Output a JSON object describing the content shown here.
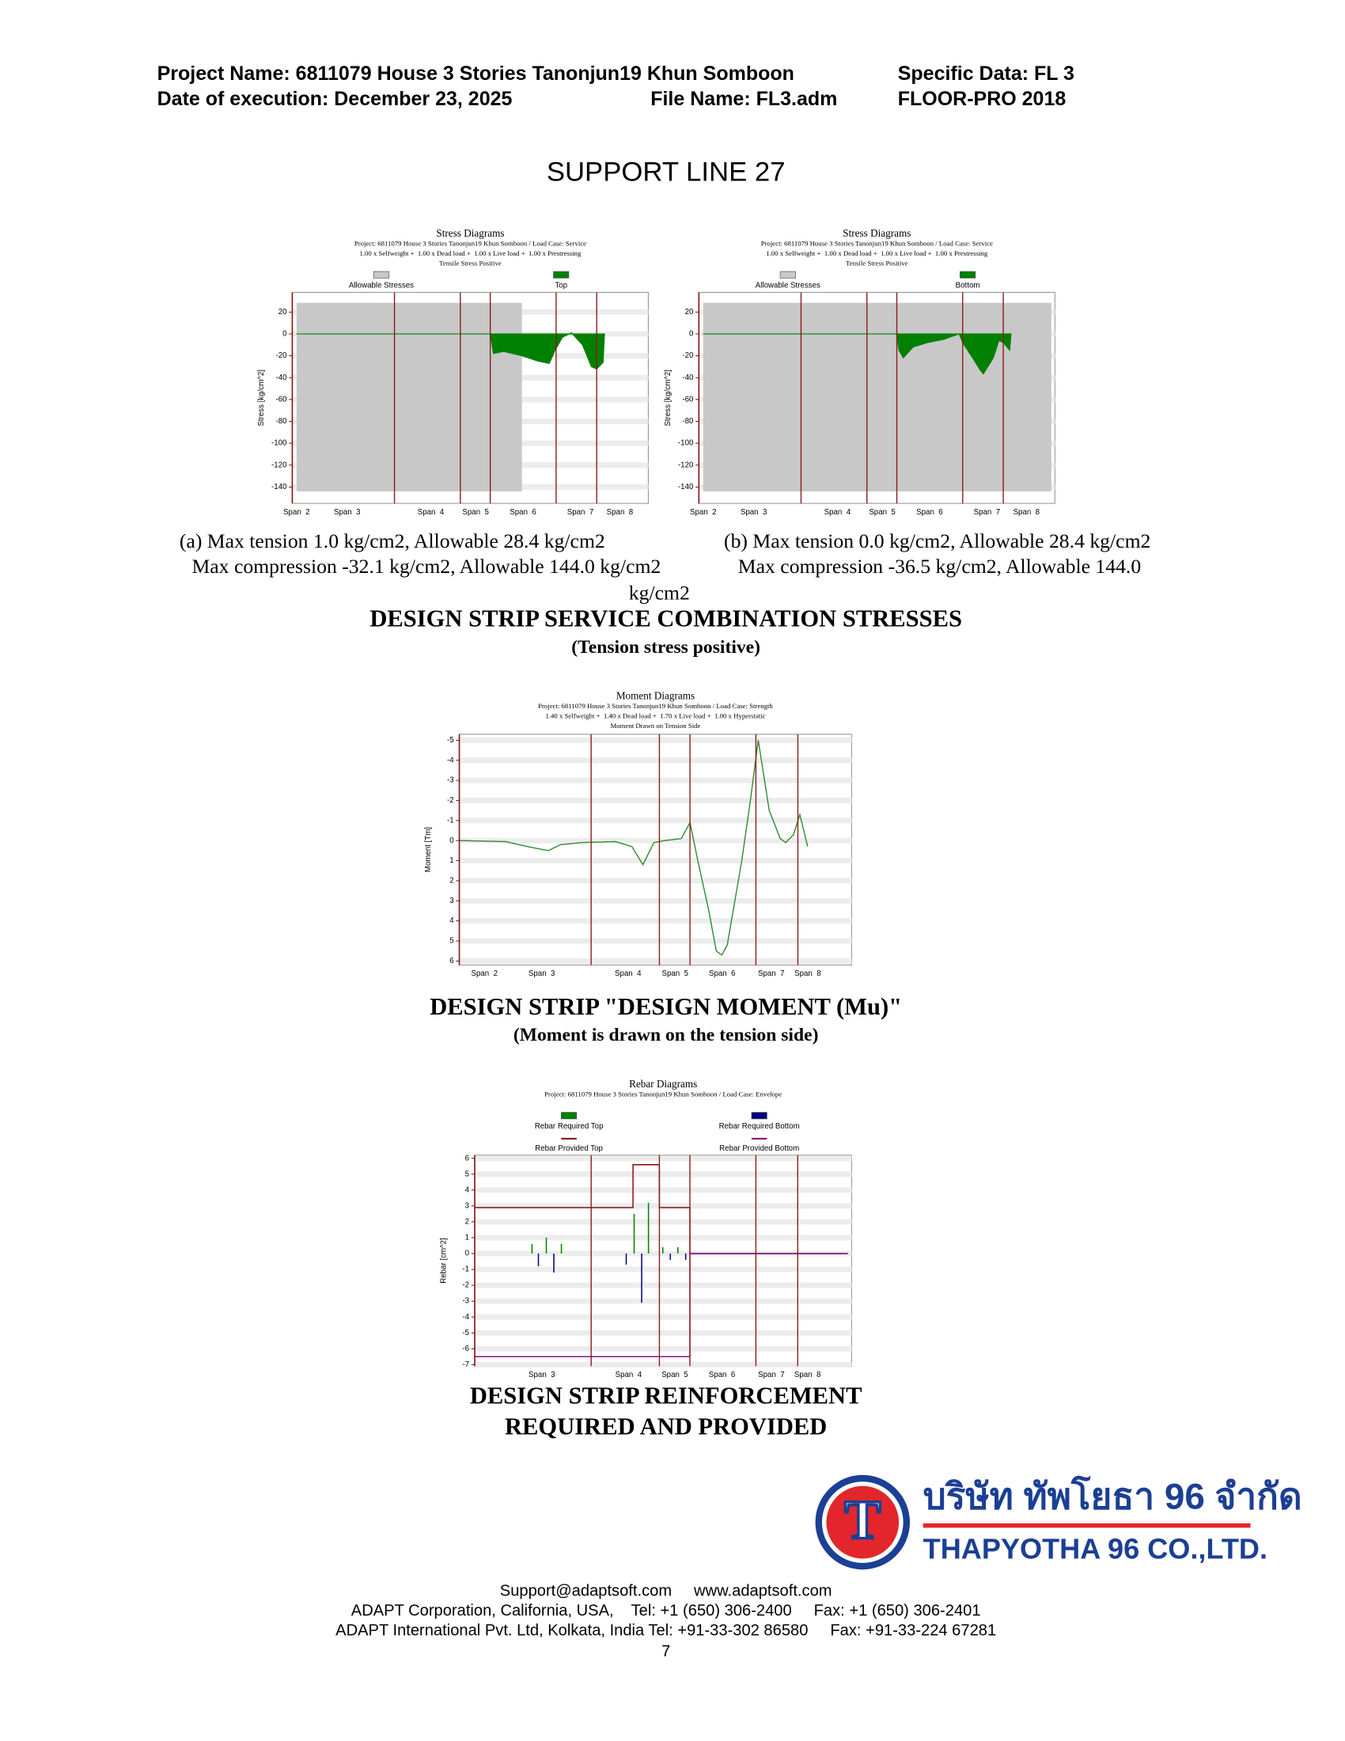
{
  "header": {
    "project_name": "Project Name: 6811079 House 3 Stories Tanonjun19 Khun Somboon",
    "specific_data": "Specific Data: FL 3",
    "date": "Date of execution: December 23, 2025",
    "file_name": "File Name: FL3.adm",
    "software": "FLOOR-PRO 2018"
  },
  "section_title": "SUPPORT LINE 27",
  "chart_data": [
    {
      "type": "area",
      "title": "Stress Diagrams",
      "subtitle": [
        "Project: 6811079 House 3 Stories Tanonjun19 Khun Somboon / Load Case: Service",
        "1.00 x Selfweight +  1.00 x Dead load +  1.00 x Live load +  1.00 x Prestressing",
        "Tensile Stress Positive"
      ],
      "ylabel": "Stress [kg/cm^2]",
      "ylim": [
        -155,
        38
      ],
      "yticks": [
        20,
        0,
        -20,
        -40,
        -60,
        -80,
        -100,
        -120,
        -140
      ],
      "xlim": [
        0,
        100
      ],
      "grid": true,
      "supports": [
        28.7,
        47.2,
        55.6,
        74.1,
        85.5
      ],
      "span_labels": [
        "Span  2",
        "Span  3",
        "Span  4",
        "Span  5",
        "Span  6",
        "Span  7",
        "Span  8"
      ],
      "span_x": [
        1.2,
        15.4,
        38.9,
        51.5,
        64.8,
        80.9,
        92
      ],
      "allowable": {
        "name": "Allowable Stresses",
        "color": "#c8c8c8",
        "x": [
          1.2,
          64.5
        ],
        "values": [
          28.4,
          -144.0
        ]
      },
      "series": [
        {
          "name": "Top",
          "color": "#008000",
          "x": [
            1.2,
            55.6,
            56.5,
            59.3,
            64.5,
            69.1,
            72.2,
            73.8,
            75.9,
            78.4,
            81.5,
            84,
            85.5,
            87.3,
            87.7
          ],
          "values": [
            0,
            0,
            -18,
            -16,
            -20,
            -25,
            -27,
            -15,
            -3,
            1.0,
            -10,
            -30,
            -32.1,
            -26,
            0
          ]
        }
      ]
    },
    {
      "type": "area",
      "title": "Stress Diagrams",
      "subtitle": [
        "Project: 6811079 House 3 Stories Tanonjun19 Khun Somboon / Load Case: Service",
        "1.00 x Selfweight +  1.00 x Dead load +  1.00 x Live load +  1.00 x Prestressing",
        "Tensile Stress Positive"
      ],
      "ylabel": "Stress [kg/cm^2]",
      "ylim": [
        -155,
        38
      ],
      "yticks": [
        20,
        0,
        -20,
        -40,
        -60,
        -80,
        -100,
        -120,
        -140
      ],
      "xlim": [
        0,
        100
      ],
      "grid": true,
      "supports": [
        28.7,
        47.2,
        55.6,
        74.1,
        85.5
      ],
      "span_labels": [
        "Span  2",
        "Span  3",
        "Span  4",
        "Span  5",
        "Span  6",
        "Span  7",
        "Span  8"
      ],
      "span_x": [
        1.2,
        15.4,
        38.9,
        51.5,
        64.8,
        80.9,
        92
      ],
      "allowable": {
        "name": "Allowable Stresses",
        "color": "#c8c8c8",
        "x": [
          1.2,
          99
        ],
        "values": [
          28.4,
          -144.0
        ]
      },
      "series": [
        {
          "name": "Bottom",
          "color": "#008000",
          "x": [
            1.2,
            55.6,
            56.2,
            57.4,
            60.2,
            64.2,
            68.8,
            73.1,
            74.1,
            76.5,
            79,
            79.9,
            82.7,
            84.3,
            85.5,
            87.3,
            87.7
          ],
          "values": [
            0,
            0,
            -15,
            -22,
            -12,
            -8,
            -5,
            0,
            -8,
            -20,
            -33,
            -36.5,
            -22,
            -6,
            -8,
            -15,
            0
          ]
        }
      ]
    },
    {
      "type": "line",
      "title": "Moment Diagrams",
      "subtitle": [
        "Project: 6811079 House 3 Stories Tanonjun19 Khun Somboon / Load Case: Strength",
        "1.40 x Selfweight +  1.40 x Dead load +  1.70 x Live load +  1.00 x Hyperstatic",
        "Moment Drawn on Tension Side"
      ],
      "ylabel": "Moment [Tm]",
      "ylim": [
        6.2,
        -5.3
      ],
      "yticks": [
        -5,
        -4,
        -3,
        -2,
        -1,
        0,
        1,
        2,
        3,
        4,
        5,
        6
      ],
      "xlim": [
        0,
        100
      ],
      "grid": true,
      "supports": [
        33.6,
        51,
        58.8,
        75.6,
        86.3
      ],
      "span_labels": [
        "Span  2",
        "Span  3",
        "Span  4",
        "Span  5",
        "Span  6",
        "Span  7",
        "Span  8"
      ],
      "span_x": [
        6.4,
        21,
        43,
        55,
        67,
        79.5,
        88.8
      ],
      "series": [
        {
          "name": "Moment",
          "color": "#2e8b2e",
          "x": [
            0,
            11.8,
            17.4,
            22.7,
            25.8,
            31.4,
            39.8,
            44,
            46.8,
            49.6,
            52.4,
            56.6,
            58.8,
            60.8,
            63.6,
            65.5,
            66.9,
            68.3,
            72,
            74.2,
            76.2,
            79,
            81.8,
            83.2,
            85.2,
            86.8,
            88.8
          ],
          "values": [
            0,
            0.05,
            0.3,
            0.5,
            0.2,
            0.1,
            0.05,
            0.3,
            1.2,
            0.1,
            0,
            -0.1,
            -0.9,
            1,
            3.5,
            5.5,
            5.7,
            5.2,
            1,
            -2,
            -5.0,
            -1.5,
            -0.1,
            0.1,
            -0.3,
            -1.3,
            0.3
          ]
        }
      ]
    },
    {
      "type": "combo",
      "title": "Rebar Diagrams",
      "subtitle": [
        "Project: 6811079 House 3 Stories Tanonjun19 Khun Somboon / Load Case: Envelope"
      ],
      "ylabel": "Rebar [cm^2]",
      "ylim": [
        -7.1,
        6.2
      ],
      "yticks": [
        6,
        5,
        4,
        3,
        2,
        1,
        0,
        -1,
        -2,
        -3,
        -4,
        -5,
        -6,
        -7
      ],
      "xlim": [
        0,
        100
      ],
      "grid": true,
      "supports": [
        30.9,
        49,
        57.1,
        74.6,
        85.7
      ],
      "span_labels": [
        "Span  3",
        "Span  4",
        "Span  5",
        "Span  6",
        "Span  7",
        "Span  8"
      ],
      "span_x": [
        17.8,
        40.8,
        53.1,
        65.6,
        78.7,
        88.3
      ],
      "series": [
        {
          "name": "Rebar Required Top",
          "color": "#008000",
          "kind": "bar",
          "x": [
            15.2,
            19,
            23,
            42.3,
            46.1,
            49.9,
            53.9
          ],
          "values": [
            0.6,
            1.0,
            0.6,
            2.5,
            3.2,
            0.4,
            0.4
          ]
        },
        {
          "name": "Rebar Required Bottom",
          "color": "#000080",
          "kind": "bar",
          "x": [
            16.9,
            21,
            40.2,
            44.3,
            51.9,
            55.98
          ],
          "values": [
            -0.8,
            -1.2,
            -0.7,
            -3.1,
            -0.4,
            -0.4
          ]
        },
        {
          "name": "Rebar Provided Top",
          "color": "#800000",
          "kind": "line",
          "x": [
            0,
            42,
            42,
            49,
            49,
            57.1,
            57.1,
            99
          ],
          "values": [
            2.9,
            2.9,
            5.6,
            5.6,
            2.9,
            2.9,
            0,
            0
          ]
        },
        {
          "name": "Rebar Provided Bottom",
          "color": "#800080",
          "kind": "line",
          "x": [
            0,
            57.1,
            57.1,
            99
          ],
          "values": [
            -6.5,
            -6.5,
            0,
            0
          ]
        }
      ]
    }
  ],
  "captions": {
    "a": [
      "(a) Max tension 1.0 kg/cm2, Allowable 28.4 kg/cm2",
      "Max compression -32.1 kg/cm2, Allowable 144.0 kg/cm2"
    ],
    "b": [
      "(b) Max tension 0.0 kg/cm2, Allowable 28.4 kg/cm2",
      "Max compression -36.5 kg/cm2, Allowable 144.0",
      "kg/cm2"
    ],
    "stress_heading": "DESIGN STRIP SERVICE COMBINATION STRESSES",
    "stress_note": "(Tension stress positive)",
    "moment_heading": "DESIGN STRIP \"DESIGN MOMENT (Mu)\"",
    "moment_note": "(Moment is drawn on the tension side)",
    "rebar_heading": [
      "DESIGN STRIP REINFORCEMENT",
      "REQUIRED AND PROVIDED"
    ]
  },
  "logo": {
    "letter": "T",
    "thai": "บริษัท ทัพโยธา 96 จำกัด",
    "english": "THAPYOTHA 96 CO.,LTD."
  },
  "footer": [
    "Support@adaptsoft.com     www.adaptsoft.com",
    "ADAPT Corporation, California, USA,    Tel: +1 (650) 306-2400     Fax: +1 (650) 306-2401",
    "ADAPT International Pvt. Ltd, Kolkata, India Tel: +91-33-302 86580     Fax: +91-33-224 67281",
    "7"
  ]
}
